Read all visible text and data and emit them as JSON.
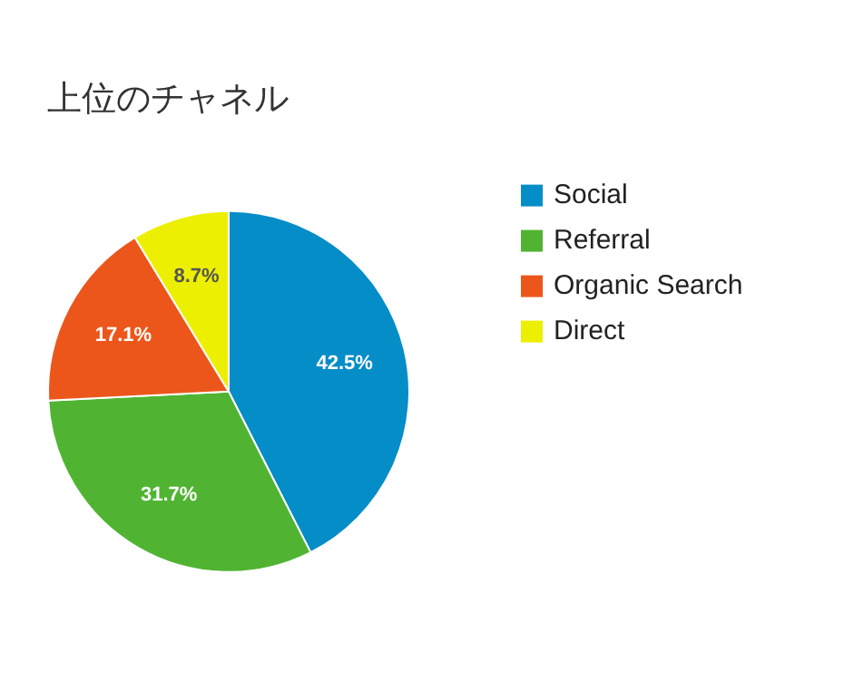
{
  "chart_data": {
    "type": "pie",
    "title": "上位のチャネル",
    "categories": [
      "Social",
      "Referral",
      "Organic Search",
      "Direct"
    ],
    "values": [
      42.5,
      31.7,
      17.1,
      8.7
    ],
    "value_labels": [
      "42.5%",
      "31.7%",
      "17.1%",
      "8.7%"
    ],
    "colors": [
      "#058dc7",
      "#50b432",
      "#ed561b",
      "#edef00"
    ],
    "legend": "right"
  }
}
